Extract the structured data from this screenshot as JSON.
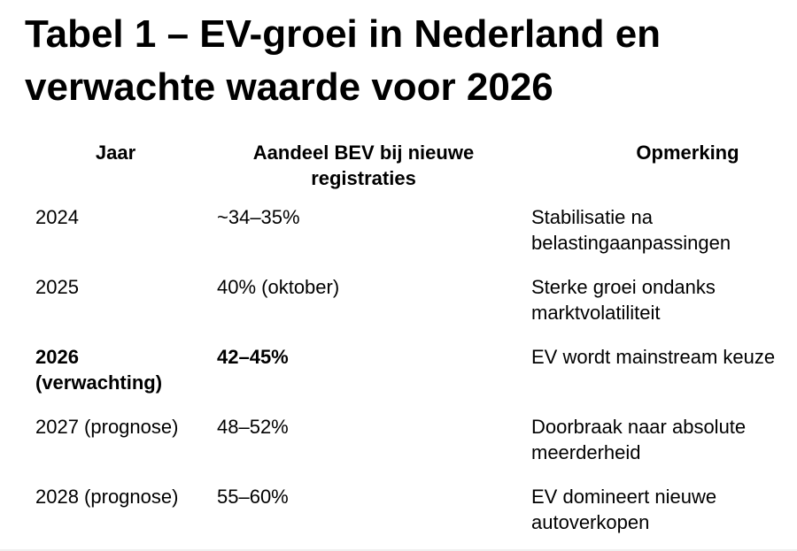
{
  "page": {
    "title": "Tabel 1 – EV-groei in Nederland en verwachte waarde voor 2026"
  },
  "table": {
    "headers": {
      "jaar": "Jaar",
      "aandeel": "Aandeel BEV bij nieuwe registraties",
      "opmerking": "Opmerking"
    },
    "rows": [
      {
        "jaar": "2024",
        "aandeel": "~34–35%",
        "opmerking": "Stabilisatie na belastingaanpassingen",
        "emphasis": false
      },
      {
        "jaar": "2025",
        "aandeel": "40% (oktober)",
        "opmerking": "Sterke groei ondanks marktvolatiliteit",
        "emphasis": false
      },
      {
        "jaar": "2026 (verwachting)",
        "aandeel": "42–45%",
        "opmerking": "EV wordt mainstream keuze",
        "emphasis": true
      },
      {
        "jaar": "2027 (prognose)",
        "aandeel": "48–52%",
        "opmerking": "Doorbraak naar absolute meerderheid",
        "emphasis": false
      },
      {
        "jaar": "2028 (prognose)",
        "aandeel": "55–60%",
        "opmerking": "EV domineert nieuwe autoverkopen",
        "emphasis": false
      }
    ]
  },
  "chart_data": {
    "type": "table",
    "title": "Tabel 1 – EV-groei in Nederland en verwachte waarde voor 2026",
    "columns": [
      "Jaar",
      "Aandeel BEV bij nieuwe registraties",
      "Opmerking"
    ],
    "rows": [
      [
        "2024",
        "~34–35%",
        "Stabilisatie na belastingaanpassingen"
      ],
      [
        "2025",
        "40% (oktober)",
        "Sterke groei ondanks marktvolatiliteit"
      ],
      [
        "2026 (verwachting)",
        "42–45%",
        "EV wordt mainstream keuze"
      ],
      [
        "2027 (prognose)",
        "48–52%",
        "Doorbraak naar absolute meerderheid"
      ],
      [
        "2028 (prognose)",
        "55–60%",
        "EV domineert nieuwe autoverkopen"
      ]
    ]
  },
  "colors": {
    "text": "#000000",
    "background": "#ffffff",
    "bottom_divider": "#f0f0f0"
  }
}
